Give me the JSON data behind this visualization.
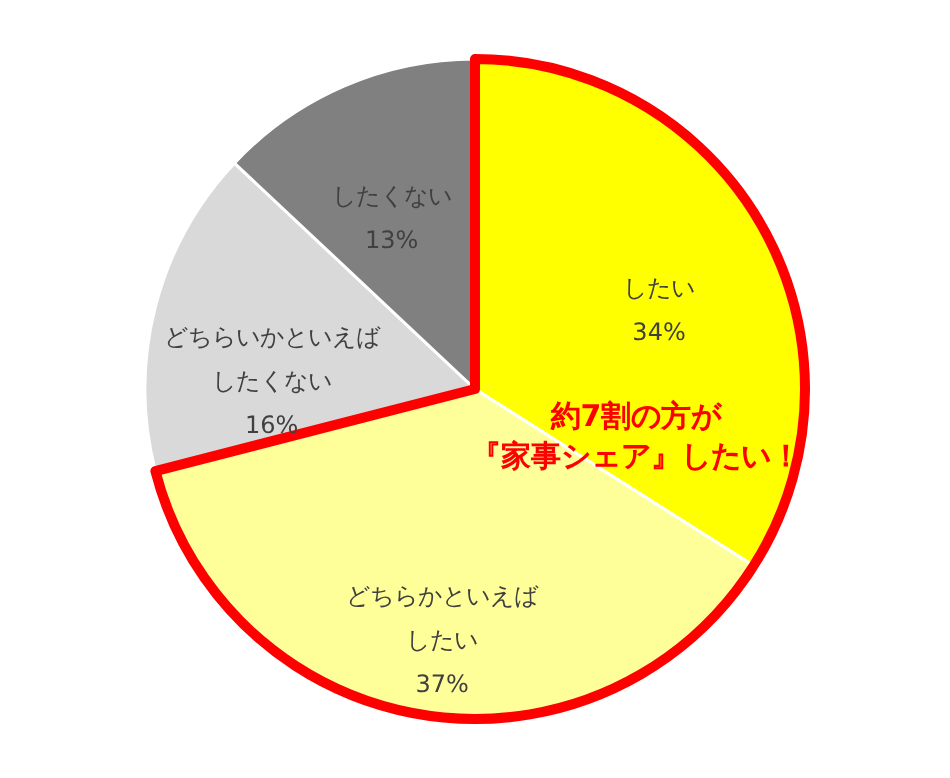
{
  "chart_data": {
    "type": "pie",
    "categories": [
      "したい",
      "どちらかといえばしたい",
      "どちらいかといえばしたくない",
      "したくない"
    ],
    "values": [
      34,
      37,
      16,
      13
    ],
    "value_labels": [
      "34%",
      "37%",
      "16%",
      "13%"
    ],
    "colors": [
      "#ffff00",
      "#ffff99",
      "#d9d9d9",
      "#808080"
    ],
    "annotations": [
      "約7割の方が『家事シェア』したい！"
    ]
  }
}
